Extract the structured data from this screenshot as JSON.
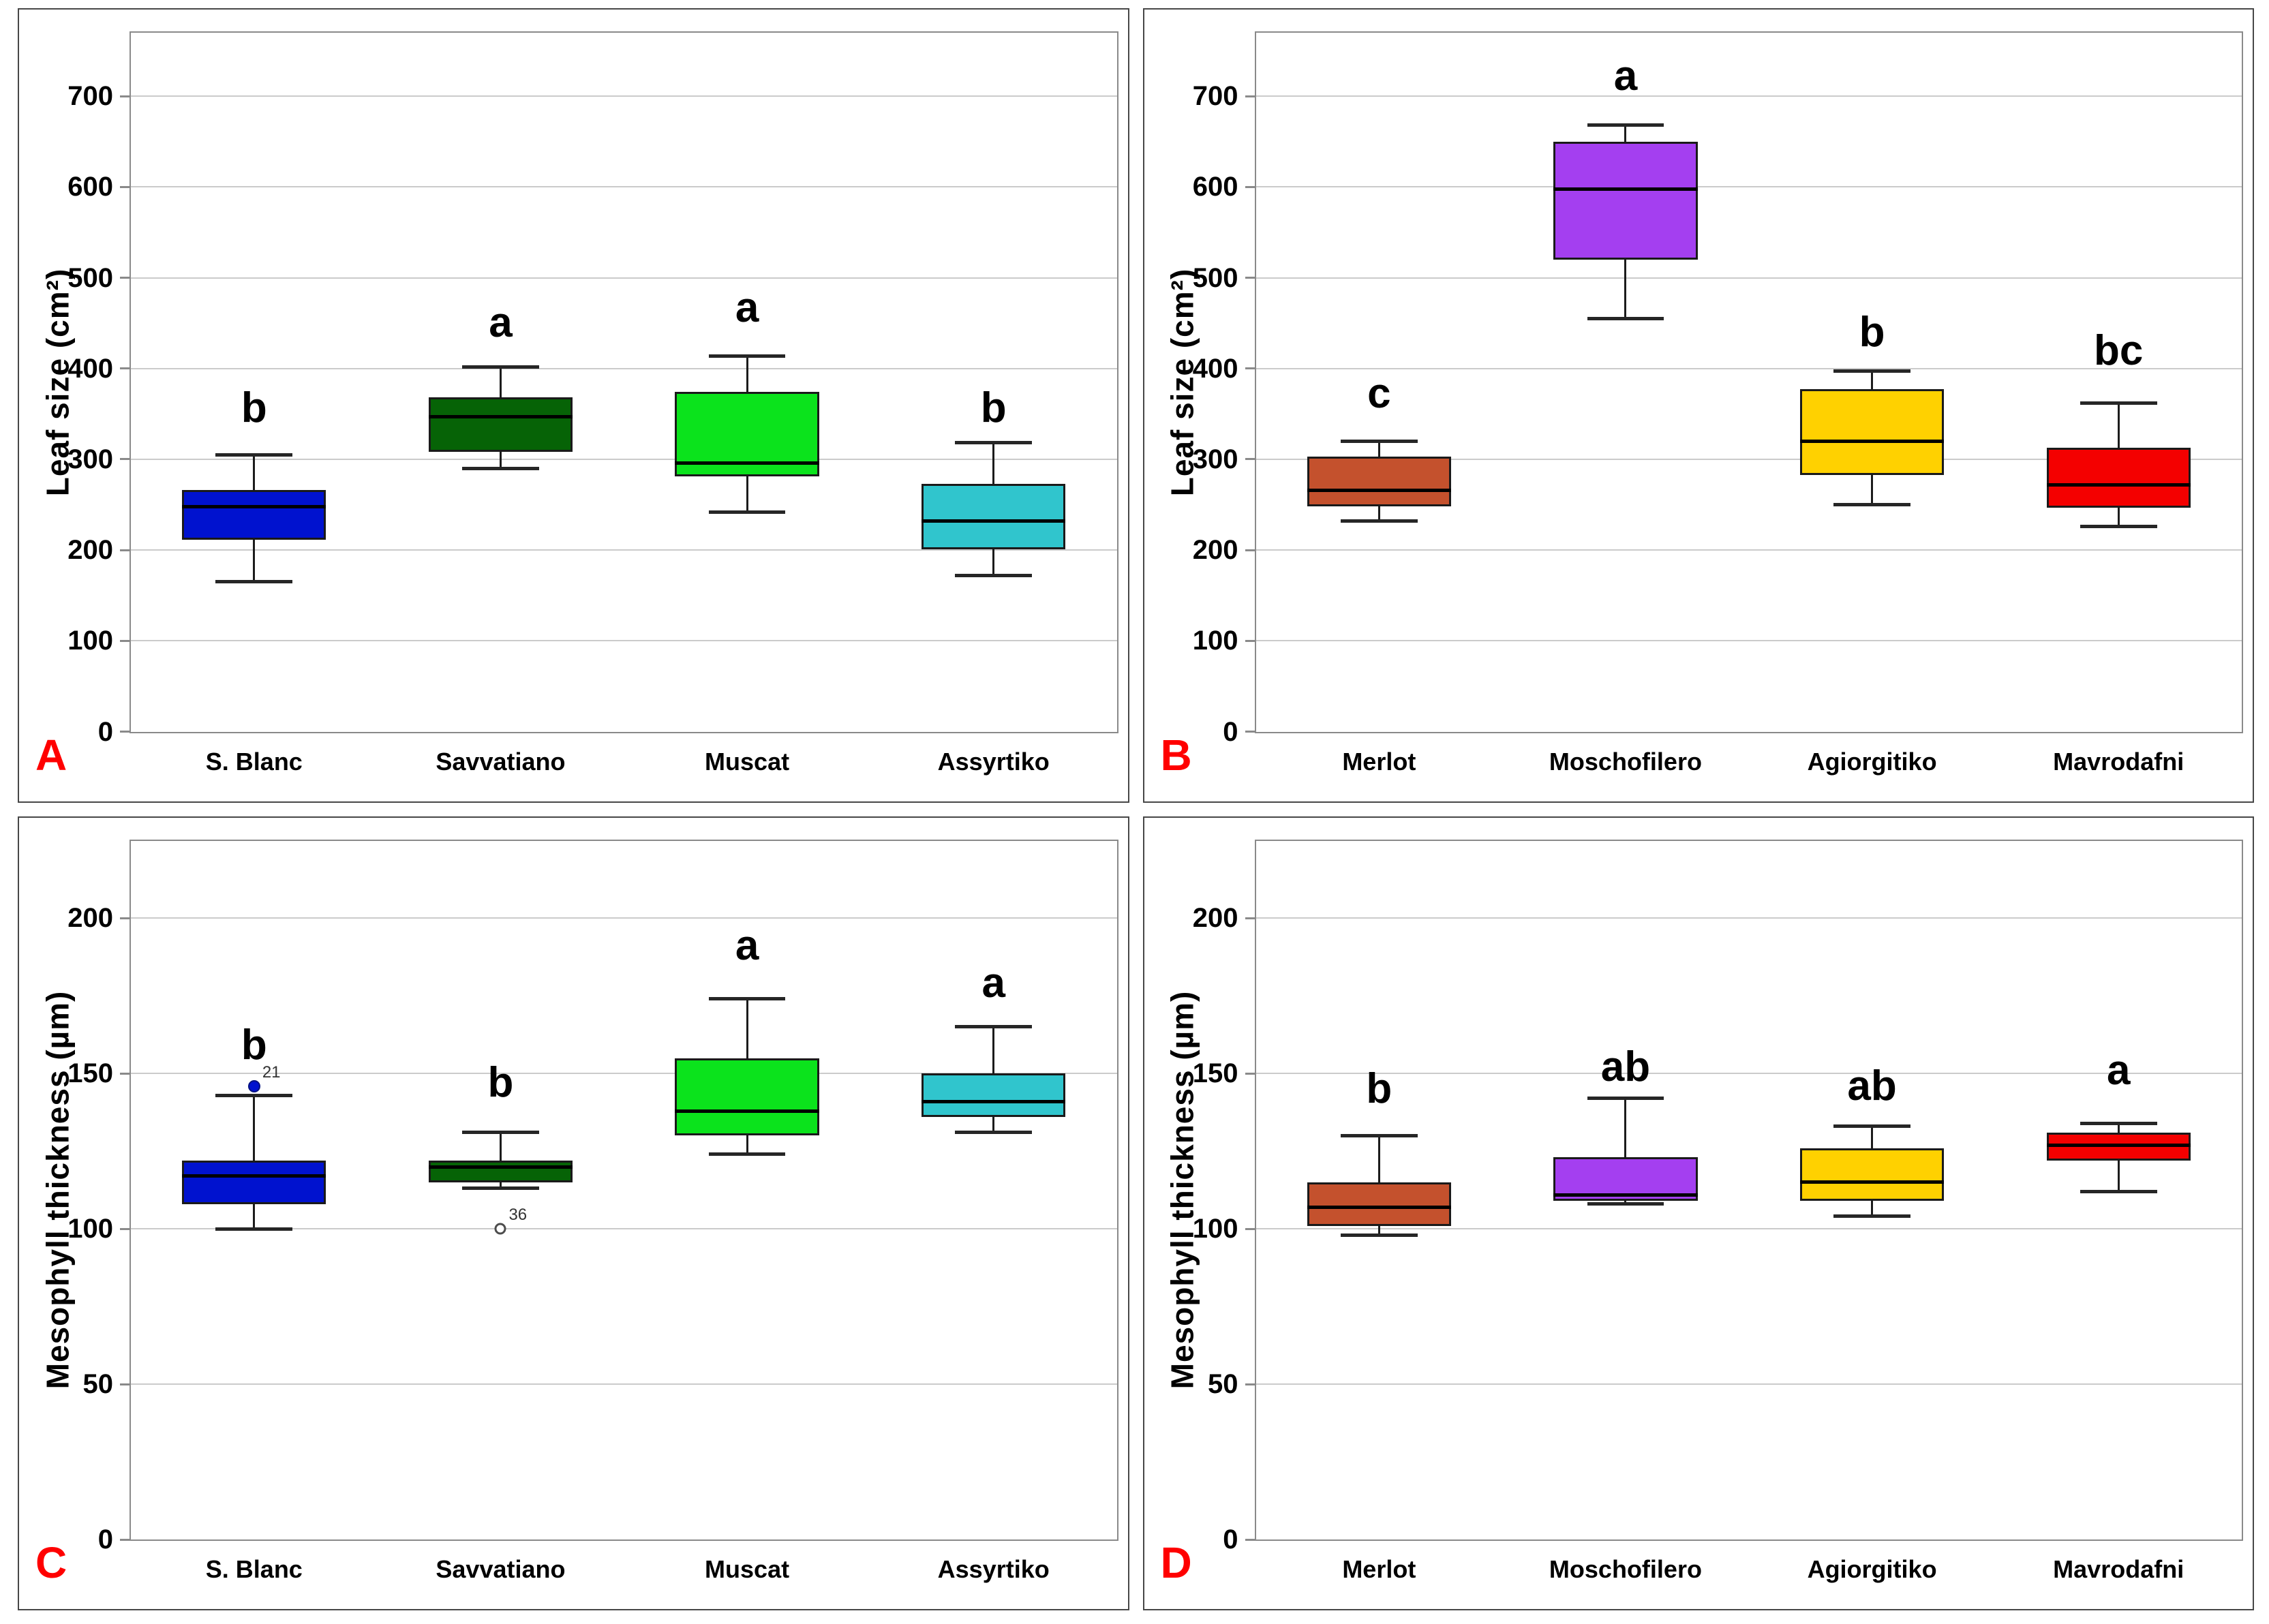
{
  "figure_title": "",
  "chart_data": [
    {
      "type": "boxplot",
      "panel": "A",
      "panel_label_color": "#FF0000",
      "ylabel": "Leaf size (cm²)",
      "xlabel": "",
      "ylim": [
        0,
        770
      ],
      "yticks": [
        0,
        100,
        200,
        300,
        400,
        500,
        600,
        700
      ],
      "grid": "horizontal",
      "legend": false,
      "categories": [
        "S. Blanc",
        "Savvatiano",
        "Muscat",
        "Assyrtiko"
      ],
      "series": [
        {
          "name": "S. Blanc",
          "color": "#0012CF",
          "sig_letter": "b",
          "letter_y": 356,
          "whislo": 165,
          "q1": 211,
          "med": 248,
          "q3": 266,
          "whishi": 305,
          "outliers": []
        },
        {
          "name": "Savvatiano",
          "color": "#066306",
          "sig_letter": "a",
          "letter_y": 450,
          "whislo": 290,
          "q1": 308,
          "med": 347,
          "q3": 368,
          "whishi": 402,
          "outliers": []
        },
        {
          "name": "Muscat",
          "color": "#0BE31C",
          "sig_letter": "a",
          "letter_y": 467,
          "whislo": 242,
          "q1": 281,
          "med": 296,
          "q3": 374,
          "whishi": 414,
          "outliers": []
        },
        {
          "name": "Assyrtiko",
          "color": "#30C5CD",
          "sig_letter": "b",
          "letter_y": 356,
          "whislo": 172,
          "q1": 201,
          "med": 232,
          "q3": 273,
          "whishi": 318,
          "outliers": []
        }
      ]
    },
    {
      "type": "boxplot",
      "panel": "B",
      "panel_label_color": "#FF0000",
      "ylabel": "Leaf size (cm²)",
      "xlabel": "",
      "ylim": [
        0,
        770
      ],
      "yticks": [
        0,
        100,
        200,
        300,
        400,
        500,
        600,
        700
      ],
      "grid": "horizontal",
      "legend": false,
      "categories": [
        "Merlot",
        "Moschofilero",
        "Agiorgitiko",
        "Mavrodafni"
      ],
      "series": [
        {
          "name": "Merlot",
          "color": "#C4512D",
          "sig_letter": "c",
          "letter_y": 372,
          "whislo": 232,
          "q1": 248,
          "med": 266,
          "q3": 303,
          "whishi": 320,
          "outliers": []
        },
        {
          "name": "Moschofilero",
          "color": "#A43FF0",
          "sig_letter": "a",
          "letter_y": 722,
          "whislo": 455,
          "q1": 520,
          "med": 598,
          "q3": 650,
          "whishi": 668,
          "outliers": []
        },
        {
          "name": "Agiorgitiko",
          "color": "#FFD100",
          "sig_letter": "b",
          "letter_y": 440,
          "whislo": 250,
          "q1": 283,
          "med": 320,
          "q3": 377,
          "whishi": 397,
          "outliers": []
        },
        {
          "name": "Mavrodafni",
          "color": "#F40000",
          "sig_letter": "bc",
          "letter_y": 419,
          "whislo": 226,
          "q1": 247,
          "med": 272,
          "q3": 313,
          "whishi": 362,
          "outliers": []
        }
      ]
    },
    {
      "type": "boxplot",
      "panel": "C",
      "panel_label_color": "#FF0000",
      "ylabel": "Mesophyll thickness (µm)",
      "xlabel": "",
      "ylim": [
        0,
        225
      ],
      "yticks": [
        0,
        50,
        100,
        150,
        200
      ],
      "grid": "horizontal",
      "legend": false,
      "categories": [
        "S. Blanc",
        "Savvatiano",
        "Muscat",
        "Assyrtiko"
      ],
      "series": [
        {
          "name": "S. Blanc",
          "color": "#0012CF",
          "sig_letter": "b",
          "letter_y": 159,
          "whislo": 100,
          "q1": 108,
          "med": 117,
          "q3": 122,
          "whishi": 143,
          "outliers": [
            {
              "value": 146,
              "label": "21",
              "style": "filled"
            }
          ]
        },
        {
          "name": "Savvatiano",
          "color": "#066306",
          "sig_letter": "b",
          "letter_y": 147,
          "whislo": 113,
          "q1": 115,
          "med": 120,
          "q3": 122,
          "whishi": 131,
          "outliers": [
            {
              "value": 100,
              "label": "36",
              "style": "open"
            }
          ]
        },
        {
          "name": "Muscat",
          "color": "#0BE31C",
          "sig_letter": "a",
          "letter_y": 191,
          "whislo": 124,
          "q1": 130,
          "med": 138,
          "q3": 155,
          "whishi": 174,
          "outliers": []
        },
        {
          "name": "Assyrtiko",
          "color": "#30C5CD",
          "sig_letter": "a",
          "letter_y": 179,
          "whislo": 131,
          "q1": 136,
          "med": 141,
          "q3": 150,
          "whishi": 165,
          "outliers": []
        }
      ]
    },
    {
      "type": "boxplot",
      "panel": "D",
      "panel_label_color": "#FF0000",
      "ylabel": "Mesophyll thickness (µm)",
      "xlabel": "",
      "ylim": [
        0,
        225
      ],
      "yticks": [
        0,
        50,
        100,
        150,
        200
      ],
      "grid": "horizontal",
      "legend": false,
      "categories": [
        "Merlot",
        "Moschofilero",
        "Agiorgitiko",
        "Mavrodafni"
      ],
      "series": [
        {
          "name": "Merlot",
          "color": "#C4512D",
          "sig_letter": "b",
          "letter_y": 145,
          "whislo": 98,
          "q1": 101,
          "med": 107,
          "q3": 115,
          "whishi": 130,
          "outliers": []
        },
        {
          "name": "Moschofilero",
          "color": "#A43FF0",
          "sig_letter": "ab",
          "letter_y": 152,
          "whislo": 108,
          "q1": 109,
          "med": 111,
          "q3": 123,
          "whishi": 142,
          "outliers": []
        },
        {
          "name": "Agiorgitiko",
          "color": "#FFD100",
          "sig_letter": "ab",
          "letter_y": 146,
          "whislo": 104,
          "q1": 109,
          "med": 115,
          "q3": 126,
          "whishi": 133,
          "outliers": []
        },
        {
          "name": "Mavrodafni",
          "color": "#F40000",
          "sig_letter": "a",
          "letter_y": 151,
          "whislo": 112,
          "q1": 122,
          "med": 127,
          "q3": 131,
          "whishi": 134,
          "outliers": []
        }
      ]
    }
  ]
}
